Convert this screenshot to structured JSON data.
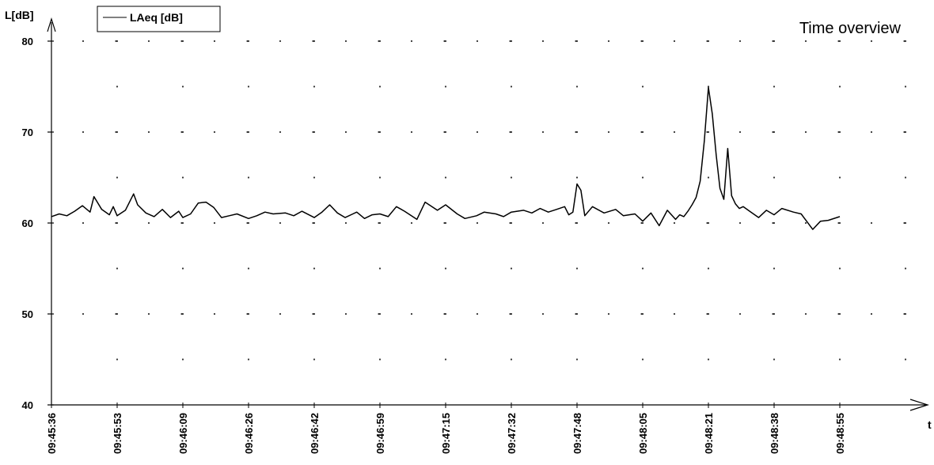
{
  "chart_data": {
    "type": "line",
    "title": "Time overview",
    "ylabel": "L[dB]",
    "xlabel": "t",
    "ylim": [
      40,
      80
    ],
    "yticks": [
      40,
      50,
      60,
      70,
      80
    ],
    "x_tick_labels": [
      "09:45:36",
      "09:45:53",
      "09:46:09",
      "09:46:26",
      "09:46:42",
      "09:46:59",
      "09:47:15",
      "09:47:32",
      "09:47:48",
      "09:48:05",
      "09:48:21",
      "09:48:38",
      "09:48:55"
    ],
    "grid": "dotted",
    "legend_position": "top-left",
    "series": [
      {
        "name": "LAeq [dB]",
        "color": "#000000",
        "x": [
          "09:45:36",
          "09:45:38",
          "09:45:40",
          "09:45:42",
          "09:45:44",
          "09:45:46",
          "09:45:47",
          "09:45:49",
          "09:45:51",
          "09:45:52",
          "09:45:53",
          "09:45:55",
          "09:45:57",
          "09:45:58",
          "09:46:00",
          "09:46:02",
          "09:46:04",
          "09:46:06",
          "09:46:08",
          "09:46:09",
          "09:46:11",
          "09:46:13",
          "09:46:15",
          "09:46:17",
          "09:46:19",
          "09:46:21",
          "09:46:23",
          "09:46:26",
          "09:46:28",
          "09:46:30",
          "09:46:32",
          "09:46:35",
          "09:46:37",
          "09:46:39",
          "09:46:42",
          "09:46:44",
          "09:46:46",
          "09:46:48",
          "09:46:50",
          "09:46:52",
          "09:46:53",
          "09:46:55",
          "09:46:57",
          "09:46:59",
          "09:47:01",
          "09:47:03",
          "09:47:05",
          "09:47:08",
          "09:47:10",
          "09:47:13",
          "09:47:15",
          "09:47:18",
          "09:47:20",
          "09:47:23",
          "09:47:25",
          "09:47:28",
          "09:47:30",
          "09:47:32",
          "09:47:35",
          "09:47:37",
          "09:47:39",
          "09:47:41",
          "09:47:43",
          "09:47:45",
          "09:47:46",
          "09:47:47",
          "09:47:48",
          "09:47:49",
          "09:47:50",
          "09:47:52",
          "09:47:55",
          "09:47:58",
          "09:48:00",
          "09:48:03",
          "09:48:05",
          "09:48:07",
          "09:48:09",
          "09:48:11",
          "09:48:13",
          "09:48:14",
          "09:48:15",
          "09:48:16",
          "09:48:17",
          "09:48:18",
          "09:48:19",
          "09:48:20",
          "09:48:21",
          "09:48:22",
          "09:48:23",
          "09:48:24",
          "09:48:25",
          "09:48:26",
          "09:48:27",
          "09:48:28",
          "09:48:29",
          "09:48:30",
          "09:48:32",
          "09:48:34",
          "09:48:36",
          "09:48:38",
          "09:48:40",
          "09:48:43",
          "09:48:45",
          "09:48:48",
          "09:48:50",
          "09:48:52",
          "09:48:55"
        ],
        "values": [
          60.7,
          61.0,
          60.8,
          61.3,
          61.9,
          61.2,
          62.9,
          61.5,
          60.9,
          61.8,
          60.8,
          61.4,
          63.2,
          62.0,
          61.1,
          60.7,
          61.5,
          60.6,
          61.3,
          60.6,
          61.0,
          62.2,
          62.3,
          61.7,
          60.6,
          60.8,
          61.0,
          60.5,
          60.8,
          61.2,
          61.0,
          61.1,
          60.8,
          61.3,
          60.6,
          61.2,
          62.0,
          61.1,
          60.6,
          61.0,
          61.2,
          60.5,
          60.9,
          61.0,
          60.7,
          61.8,
          61.3,
          60.4,
          62.3,
          61.4,
          62.0,
          61.0,
          60.5,
          60.8,
          61.2,
          61.0,
          60.7,
          61.2,
          61.4,
          61.1,
          61.6,
          61.2,
          61.5,
          61.8,
          60.9,
          61.2,
          64.3,
          63.6,
          60.8,
          61.8,
          61.1,
          61.5,
          60.8,
          61.0,
          60.2,
          61.1,
          59.7,
          61.4,
          60.4,
          60.9,
          60.7,
          61.3,
          62.0,
          62.8,
          64.6,
          69.0,
          74.9,
          72.0,
          67.5,
          63.8,
          62.6,
          68.2,
          63.0,
          62.1,
          61.6,
          61.8,
          61.2,
          60.6,
          61.4,
          60.9,
          61.6,
          61.2,
          61.0,
          59.3,
          60.2,
          60.3,
          60.7
        ]
      }
    ]
  }
}
